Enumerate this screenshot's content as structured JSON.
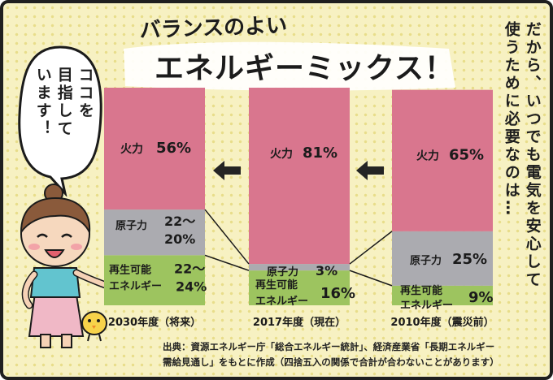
{
  "headline": {
    "line1": "バランスのよい",
    "line2": "エネルギーミックス！"
  },
  "side_note": {
    "col1": "だから、いつでも電気を安心して",
    "col2": "使うために必要なのは…"
  },
  "speech_bubble": {
    "col1": "ココを",
    "col2": "目指して",
    "col3": "います！"
  },
  "source_note": {
    "line1": "出典：資源エネルギー庁「総合エネルギー統計」、経済産業省「長期エネルギー",
    "line2": "需給見通し」をもとに作成（四捨五入の関係で合計が合わないことがあります）"
  },
  "colors": {
    "thermal": "#d9768e",
    "nuclear": "#ababb0",
    "renewable": "#9dc45f",
    "arrow": "#242424"
  },
  "chart_data": {
    "type": "bar",
    "stacked": true,
    "orientation": "vertical",
    "unit": "%",
    "ylim": [
      0,
      100
    ],
    "categories": [
      "2030年度（将来）",
      "2017年度（現在）",
      "2010年度（震災前）"
    ],
    "series": [
      {
        "key": "renewable",
        "values": [
          23,
          16,
          9
        ]
      },
      {
        "key": "nuclear",
        "values": [
          21,
          3,
          25
        ]
      },
      {
        "key": "thermal",
        "values": [
          56,
          81,
          65
        ]
      }
    ],
    "segment_labels": [
      {
        "thermal": "火力",
        "thermal_value": "56%",
        "nuclear": "原子力",
        "nuclear_value_1": "22～",
        "nuclear_value_2": "20%",
        "renewable_1": "再生可能",
        "renewable_value_1": "22～",
        "renewable_2": "エネルギー",
        "renewable_value_2": "24%"
      },
      {
        "thermal": "火力",
        "thermal_value": "81%",
        "nuclear": "原子力",
        "nuclear_value": "3%",
        "renewable_1": "再生可能",
        "renewable_2": "エネルギー",
        "renewable_value": "16%"
      },
      {
        "thermal": "火力",
        "thermal_value": "65%",
        "nuclear": "原子力",
        "nuclear_value": "25%",
        "renewable_1": "再生可能",
        "renewable_2": "エネルギー",
        "renewable_value": "9%"
      }
    ],
    "grid": false,
    "legend": "none"
  }
}
